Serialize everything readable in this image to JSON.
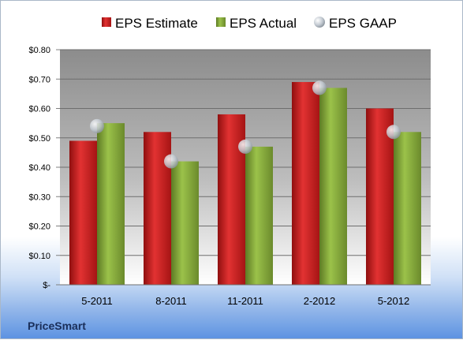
{
  "colors": {
    "estimate": "#cc1f1f",
    "actual": "#86a83a",
    "gaap": "#b9c2cc",
    "plot_background_top": "#8a8a8a",
    "plot_background_bottom": "#ffffff"
  },
  "company_label": "PriceSmart",
  "chart_data": {
    "type": "bar",
    "categories": [
      "5-2011",
      "8-2011",
      "11-2011",
      "2-2012",
      "5-2012"
    ],
    "series": [
      {
        "name": "EPS Estimate",
        "kind": "bar",
        "color": "#cc1f1f",
        "values": [
          0.49,
          0.52,
          0.58,
          0.69,
          0.6
        ]
      },
      {
        "name": "EPS Actual",
        "kind": "bar",
        "color": "#86a83a",
        "values": [
          0.55,
          0.42,
          0.47,
          0.67,
          0.52
        ]
      },
      {
        "name": "EPS GAAP",
        "kind": "scatter",
        "color": "#b9c2cc",
        "values": [
          0.54,
          0.42,
          0.47,
          0.67,
          0.52
        ]
      }
    ],
    "ylim": [
      0,
      0.8
    ],
    "yticks": [
      0,
      0.1,
      0.2,
      0.3,
      0.4,
      0.5,
      0.6,
      0.7,
      0.8
    ],
    "ytick_labels": [
      "$-",
      "$0.10",
      "$0.20",
      "$0.30",
      "$0.40",
      "$0.50",
      "$0.60",
      "$0.70",
      "$0.80"
    ],
    "grid": true,
    "legend_position": "top"
  }
}
